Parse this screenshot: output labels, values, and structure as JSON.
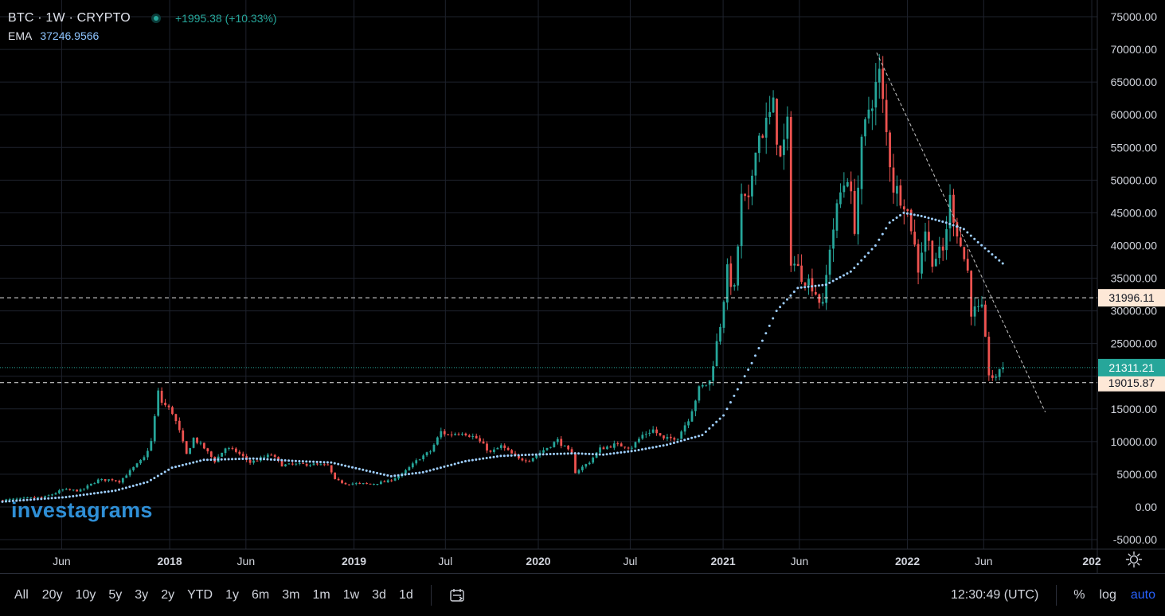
{
  "legend": {
    "symbol": "BTC · 1W · CRYPTO",
    "change": "+1995.38 (+10.33%)",
    "ema_label": "EMA",
    "ema_value": "37246.9566"
  },
  "watermark": "investagrams",
  "toolbar": {
    "timeframes": [
      "All",
      "20y",
      "10y",
      "5y",
      "3y",
      "2y",
      "YTD",
      "1y",
      "6m",
      "3m",
      "1m",
      "1w",
      "3d",
      "1d"
    ],
    "clock": "12:30:49 (UTC)",
    "percent_label": "%",
    "log_label": "log",
    "auto_label": "auto"
  },
  "chart_data": {
    "type": "candlestick",
    "interval": "1W",
    "colors": {
      "up": "#26a69a",
      "down": "#ef5350",
      "ema": "#9fd0ff",
      "grid": "#1e222d",
      "last_price_bg": "#26a69a",
      "level_label_bg": "#fde8d7"
    },
    "ylim": [
      -5000,
      75000
    ],
    "y_ticks": [
      75000,
      70000,
      65000,
      60000,
      55000,
      50000,
      45000,
      40000,
      35000,
      30000,
      25000,
      20000,
      15000,
      10000,
      5000,
      0,
      -5000
    ],
    "y_tick_labels": [
      "75000.00",
      "70000.00",
      "65000.00",
      "60000.00",
      "55000.00",
      "50000.00",
      "45000.00",
      "40000.00",
      "35000.00",
      "30000.00",
      "25000.00",
      "20000.00",
      "15000.00",
      "10000.00",
      "5000.00",
      "0.00",
      "-5000.00"
    ],
    "x_ticks": [
      {
        "label": "Jun",
        "date": "2017-06-01"
      },
      {
        "label": "2018",
        "date": "2018-01-01"
      },
      {
        "label": "Jun",
        "date": "2018-06-01"
      },
      {
        "label": "2019",
        "date": "2019-01-01"
      },
      {
        "label": "Jul",
        "date": "2019-07-01"
      },
      {
        "label": "2020",
        "date": "2020-01-01"
      },
      {
        "label": "Jul",
        "date": "2020-07-01"
      },
      {
        "label": "2021",
        "date": "2021-01-01"
      },
      {
        "label": "Jun",
        "date": "2021-06-01"
      },
      {
        "label": "2022",
        "date": "2022-01-01"
      },
      {
        "label": "Jun",
        "date": "2022-06-01"
      },
      {
        "label": "202",
        "date": "2023-01-01"
      }
    ],
    "x_range": [
      "2017-01-30",
      "2023-01-12"
    ],
    "price_anchors": [
      [
        "2017-01-30",
        1000
      ],
      [
        "2017-03-01",
        1150
      ],
      [
        "2017-05-01",
        1500
      ],
      [
        "2017-06-05",
        2600
      ],
      [
        "2017-07-10",
        2500
      ],
      [
        "2017-08-14",
        4100
      ],
      [
        "2017-09-11",
        4200
      ],
      [
        "2017-09-25",
        3900
      ],
      [
        "2017-10-23",
        6000
      ],
      [
        "2017-11-13",
        7500
      ],
      [
        "2017-11-27",
        10000
      ],
      [
        "2017-12-11",
        17500
      ],
      [
        "2017-12-18",
        16000
      ],
      [
        "2018-01-08",
        14500
      ],
      [
        "2018-01-22",
        11500
      ],
      [
        "2018-02-05",
        8000
      ],
      [
        "2018-02-19",
        10500
      ],
      [
        "2018-03-12",
        9000
      ],
      [
        "2018-04-02",
        7000
      ],
      [
        "2018-04-23",
        9000
      ],
      [
        "2018-05-14",
        8500
      ],
      [
        "2018-06-11",
        6800
      ],
      [
        "2018-07-23",
        8000
      ],
      [
        "2018-08-13",
        6400
      ],
      [
        "2018-09-10",
        6500
      ],
      [
        "2018-10-15",
        6500
      ],
      [
        "2018-11-12",
        6300
      ],
      [
        "2018-11-26",
        4100
      ],
      [
        "2018-12-17",
        3600
      ],
      [
        "2019-02-04",
        3500
      ],
      [
        "2019-03-11",
        3900
      ],
      [
        "2019-04-08",
        5000
      ],
      [
        "2019-05-13",
        7500
      ],
      [
        "2019-06-03",
        8500
      ],
      [
        "2019-06-24",
        11500
      ],
      [
        "2019-07-08",
        11000
      ],
      [
        "2019-08-05",
        11500
      ],
      [
        "2019-09-02",
        10500
      ],
      [
        "2019-09-30",
        8300
      ],
      [
        "2019-10-21",
        9300
      ],
      [
        "2019-11-25",
        7300
      ],
      [
        "2019-12-16",
        7200
      ],
      [
        "2020-01-13",
        8700
      ],
      [
        "2020-02-10",
        10200
      ],
      [
        "2020-03-09",
        8000
      ],
      [
        "2020-03-16",
        5300
      ],
      [
        "2020-04-13",
        6900
      ],
      [
        "2020-05-04",
        8900
      ],
      [
        "2020-06-01",
        9500
      ],
      [
        "2020-07-06",
        9200
      ],
      [
        "2020-07-27",
        11000
      ],
      [
        "2020-08-17",
        11800
      ],
      [
        "2020-09-07",
        10300
      ],
      [
        "2020-10-05",
        10700
      ],
      [
        "2020-10-26",
        13500
      ],
      [
        "2020-11-16",
        18000
      ],
      [
        "2020-12-07",
        19200
      ],
      [
        "2020-12-28",
        28000
      ],
      [
        "2021-01-11",
        36000
      ],
      [
        "2021-01-25",
        33000
      ],
      [
        "2021-02-08",
        47000
      ],
      [
        "2021-02-22",
        46000
      ],
      [
        "2021-03-08",
        56000
      ],
      [
        "2021-03-29",
        58500
      ],
      [
        "2021-04-12",
        61000
      ],
      [
        "2021-04-26",
        53000
      ],
      [
        "2021-05-10",
        58000
      ],
      [
        "2021-05-17",
        38000
      ],
      [
        "2021-06-07",
        35500
      ],
      [
        "2021-06-28",
        34000
      ],
      [
        "2021-07-19",
        30500
      ],
      [
        "2021-08-02",
        40000
      ],
      [
        "2021-08-23",
        48000
      ],
      [
        "2021-09-06",
        51000
      ],
      [
        "2021-09-20",
        43000
      ],
      [
        "2021-10-04",
        55000
      ],
      [
        "2021-10-18",
        61000
      ],
      [
        "2021-11-08",
        66000
      ],
      [
        "2021-11-22",
        57000
      ],
      [
        "2021-12-06",
        49000
      ],
      [
        "2021-12-27",
        47000
      ],
      [
        "2022-01-10",
        43000
      ],
      [
        "2022-01-24",
        36500
      ],
      [
        "2022-02-07",
        42500
      ],
      [
        "2022-02-21",
        38000
      ],
      [
        "2022-03-14",
        39000
      ],
      [
        "2022-03-28",
        47000
      ],
      [
        "2022-04-18",
        40000
      ],
      [
        "2022-05-02",
        36000
      ],
      [
        "2022-05-09",
        30000
      ],
      [
        "2022-05-30",
        30000
      ],
      [
        "2022-06-13",
        20500
      ],
      [
        "2022-06-27",
        19300
      ],
      [
        "2022-07-04",
        21311
      ]
    ],
    "last_price": 21311.21,
    "horizontal_levels": [
      31996.11,
      19015.87
    ],
    "level_labels": [
      "31996.11",
      "19015.87"
    ],
    "last_price_label": "21311.21",
    "trendline": {
      "from": {
        "date": "2021-11-01",
        "price": 69500
      },
      "to": {
        "date": "2022-10-01",
        "price": 14500
      }
    },
    "ema_anchors": [
      [
        "2017-01-30",
        800
      ],
      [
        "2017-06-05",
        1500
      ],
      [
        "2017-09-11",
        2500
      ],
      [
        "2017-11-13",
        3800
      ],
      [
        "2018-01-01",
        6000
      ],
      [
        "2018-03-05",
        7200
      ],
      [
        "2018-06-11",
        7400
      ],
      [
        "2018-09-10",
        7000
      ],
      [
        "2018-11-12",
        6800
      ],
      [
        "2019-01-07",
        5800
      ],
      [
        "2019-03-11",
        4700
      ],
      [
        "2019-05-13",
        5300
      ],
      [
        "2019-08-05",
        7000
      ],
      [
        "2019-10-14",
        7800
      ],
      [
        "2019-12-16",
        8000
      ],
      [
        "2020-03-09",
        8200
      ],
      [
        "2020-05-04",
        8000
      ],
      [
        "2020-07-06",
        8600
      ],
      [
        "2020-09-07",
        9500
      ],
      [
        "2020-11-16",
        11000
      ],
      [
        "2020-12-28",
        14000
      ],
      [
        "2021-02-22",
        22000
      ],
      [
        "2021-04-12",
        30000
      ],
      [
        "2021-05-24",
        33500
      ],
      [
        "2021-07-19",
        34000
      ],
      [
        "2021-09-06",
        36000
      ],
      [
        "2021-10-25",
        40000
      ],
      [
        "2021-11-22",
        43500
      ],
      [
        "2021-12-20",
        45000
      ],
      [
        "2022-01-24",
        44500
      ],
      [
        "2022-03-14",
        43500
      ],
      [
        "2022-04-18",
        42500
      ],
      [
        "2022-05-16",
        40500
      ],
      [
        "2022-07-04",
        37247
      ]
    ]
  }
}
